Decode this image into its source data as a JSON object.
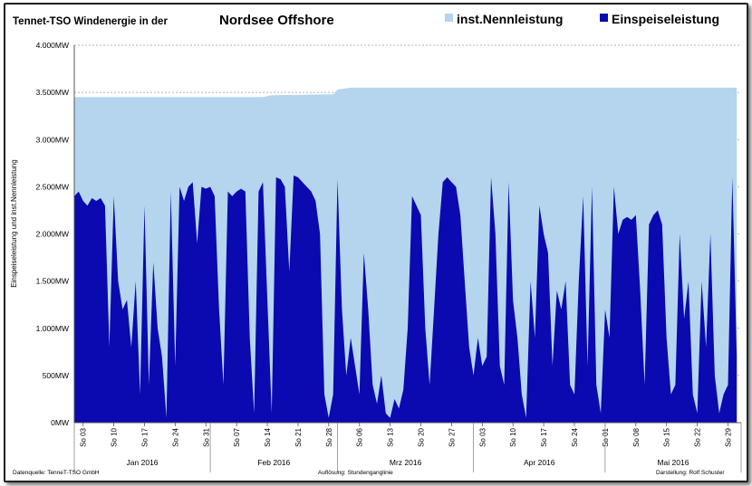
{
  "chart_data": {
    "type": "area",
    "title": {
      "prefix": "Tennet-TSO  Windenergie in der",
      "main": "Nordsee  Offshore"
    },
    "ylabel": "Einspeiseleistung und inst.Nennleistung",
    "ylim": [
      0,
      4000
    ],
    "yticks": [
      {
        "value": 0,
        "label": "0MW"
      },
      {
        "value": 500,
        "label": "500MW"
      },
      {
        "value": 1000,
        "label": "1.000MW"
      },
      {
        "value": 1500,
        "label": "1.500MW"
      },
      {
        "value": 2000,
        "label": "2.000MW"
      },
      {
        "value": 2500,
        "label": "2.500MW"
      },
      {
        "value": 3000,
        "label": "3.000MW"
      },
      {
        "value": 3500,
        "label": "3.500MW"
      },
      {
        "value": 4000,
        "label": "4.000MW"
      }
    ],
    "grid": true,
    "legend_position": "top-right",
    "xlim": [
      "2016-01-01",
      "2016-06-01"
    ],
    "xticks": [
      "So 03",
      "So 10",
      "So 17",
      "So 24",
      "So 31",
      "So 07",
      "So 14",
      "So 21",
      "So 28",
      "So 06",
      "So 13",
      "So 20",
      "So 27",
      "So 03",
      "So 10",
      "So 17",
      "So 24",
      "So 01",
      "So 08",
      "So 15",
      "So 22",
      "So 29"
    ],
    "months": [
      "Jan 2016",
      "Feb 2016",
      "Mrz 2016",
      "Apr 2016",
      "Mai 2016"
    ],
    "series": [
      {
        "name": "inst.Nennleistung",
        "color": "#b4d5ed",
        "points": [
          [
            "2016-01-01",
            3450
          ],
          [
            "2016-02-13",
            3450
          ],
          [
            "2016-02-15",
            3470
          ],
          [
            "2016-02-29",
            3480
          ],
          [
            "2016-03-01",
            3530
          ],
          [
            "2016-03-04",
            3550
          ],
          [
            "2016-05-31",
            3550
          ]
        ]
      },
      {
        "name": "Einspeiseleistung",
        "color": "#0a0ab0",
        "points": [
          [
            "2016-01-01",
            2400
          ],
          [
            "2016-01-02",
            2450
          ],
          [
            "2016-01-03",
            2350
          ],
          [
            "2016-01-04",
            2300
          ],
          [
            "2016-01-05",
            2380
          ],
          [
            "2016-01-06",
            2350
          ],
          [
            "2016-01-07",
            2380
          ],
          [
            "2016-01-08",
            2300
          ],
          [
            "2016-01-09",
            800
          ],
          [
            "2016-01-10",
            2400
          ],
          [
            "2016-01-11",
            1500
          ],
          [
            "2016-01-12",
            1200
          ],
          [
            "2016-01-13",
            1300
          ],
          [
            "2016-01-14",
            800
          ],
          [
            "2016-01-15",
            1500
          ],
          [
            "2016-01-16",
            300
          ],
          [
            "2016-01-17",
            2300
          ],
          [
            "2016-01-18",
            400
          ],
          [
            "2016-01-19",
            1700
          ],
          [
            "2016-01-20",
            1000
          ],
          [
            "2016-01-21",
            700
          ],
          [
            "2016-01-22",
            50
          ],
          [
            "2016-01-23",
            2450
          ],
          [
            "2016-01-24",
            600
          ],
          [
            "2016-01-25",
            2500
          ],
          [
            "2016-01-26",
            2350
          ],
          [
            "2016-01-27",
            2500
          ],
          [
            "2016-01-28",
            2550
          ],
          [
            "2016-01-29",
            1900
          ],
          [
            "2016-01-30",
            2500
          ],
          [
            "2016-01-31",
            2480
          ],
          [
            "2016-02-01",
            2500
          ],
          [
            "2016-02-02",
            2400
          ],
          [
            "2016-02-03",
            1200
          ],
          [
            "2016-02-04",
            400
          ],
          [
            "2016-02-05",
            2450
          ],
          [
            "2016-02-06",
            2400
          ],
          [
            "2016-02-07",
            2450
          ],
          [
            "2016-02-08",
            2480
          ],
          [
            "2016-02-09",
            2450
          ],
          [
            "2016-02-10",
            900
          ],
          [
            "2016-02-11",
            100
          ],
          [
            "2016-02-12",
            2450
          ],
          [
            "2016-02-13",
            2550
          ],
          [
            "2016-02-14",
            1300
          ],
          [
            "2016-02-15",
            100
          ],
          [
            "2016-02-16",
            2600
          ],
          [
            "2016-02-17",
            2580
          ],
          [
            "2016-02-18",
            2500
          ],
          [
            "2016-02-19",
            1600
          ],
          [
            "2016-02-20",
            2620
          ],
          [
            "2016-02-21",
            2600
          ],
          [
            "2016-02-22",
            2550
          ],
          [
            "2016-02-23",
            2500
          ],
          [
            "2016-02-24",
            2450
          ],
          [
            "2016-02-25",
            2350
          ],
          [
            "2016-02-26",
            2000
          ],
          [
            "2016-02-27",
            300
          ],
          [
            "2016-02-28",
            50
          ],
          [
            "2016-02-29",
            300
          ],
          [
            "2016-03-01",
            2580
          ],
          [
            "2016-03-02",
            1200
          ],
          [
            "2016-03-03",
            500
          ],
          [
            "2016-03-04",
            900
          ],
          [
            "2016-03-05",
            600
          ],
          [
            "2016-03-06",
            300
          ],
          [
            "2016-03-07",
            1800
          ],
          [
            "2016-03-08",
            1200
          ],
          [
            "2016-03-09",
            400
          ],
          [
            "2016-03-10",
            200
          ],
          [
            "2016-03-11",
            500
          ],
          [
            "2016-03-12",
            100
          ],
          [
            "2016-03-13",
            50
          ],
          [
            "2016-03-14",
            250
          ],
          [
            "2016-03-15",
            150
          ],
          [
            "2016-03-16",
            350
          ],
          [
            "2016-03-17",
            1000
          ],
          [
            "2016-03-18",
            2400
          ],
          [
            "2016-03-19",
            2300
          ],
          [
            "2016-03-20",
            2200
          ],
          [
            "2016-03-21",
            1000
          ],
          [
            "2016-03-22",
            400
          ],
          [
            "2016-03-23",
            1200
          ],
          [
            "2016-03-24",
            2000
          ],
          [
            "2016-03-25",
            2550
          ],
          [
            "2016-03-26",
            2600
          ],
          [
            "2016-03-27",
            2550
          ],
          [
            "2016-03-28",
            2500
          ],
          [
            "2016-03-29",
            2200
          ],
          [
            "2016-03-30",
            1500
          ],
          [
            "2016-03-31",
            800
          ],
          [
            "2016-04-01",
            500
          ],
          [
            "2016-04-02",
            900
          ],
          [
            "2016-04-03",
            600
          ],
          [
            "2016-04-04",
            700
          ],
          [
            "2016-04-05",
            2600
          ],
          [
            "2016-04-06",
            2000
          ],
          [
            "2016-04-07",
            600
          ],
          [
            "2016-04-08",
            400
          ],
          [
            "2016-04-09",
            2550
          ],
          [
            "2016-04-10",
            1300
          ],
          [
            "2016-04-11",
            900
          ],
          [
            "2016-04-12",
            300
          ],
          [
            "2016-04-13",
            50
          ],
          [
            "2016-04-14",
            1500
          ],
          [
            "2016-04-15",
            900
          ],
          [
            "2016-04-16",
            2300
          ],
          [
            "2016-04-17",
            2000
          ],
          [
            "2016-04-18",
            1800
          ],
          [
            "2016-04-19",
            600
          ],
          [
            "2016-04-20",
            1400
          ],
          [
            "2016-04-21",
            1200
          ],
          [
            "2016-04-22",
            1500
          ],
          [
            "2016-04-23",
            400
          ],
          [
            "2016-04-24",
            300
          ],
          [
            "2016-04-25",
            1500
          ],
          [
            "2016-04-26",
            2400
          ],
          [
            "2016-04-27",
            600
          ],
          [
            "2016-04-28",
            2500
          ],
          [
            "2016-04-29",
            400
          ],
          [
            "2016-04-30",
            100
          ],
          [
            "2016-05-01",
            1200
          ],
          [
            "2016-05-02",
            900
          ],
          [
            "2016-05-03",
            2500
          ],
          [
            "2016-05-04",
            2000
          ],
          [
            "2016-05-05",
            2150
          ],
          [
            "2016-05-06",
            2180
          ],
          [
            "2016-05-07",
            2150
          ],
          [
            "2016-05-08",
            2200
          ],
          [
            "2016-05-09",
            1400
          ],
          [
            "2016-05-10",
            400
          ],
          [
            "2016-05-11",
            2100
          ],
          [
            "2016-05-12",
            2200
          ],
          [
            "2016-05-13",
            2250
          ],
          [
            "2016-05-14",
            2100
          ],
          [
            "2016-05-15",
            900
          ],
          [
            "2016-05-16",
            300
          ],
          [
            "2016-05-17",
            400
          ],
          [
            "2016-05-18",
            2000
          ],
          [
            "2016-05-19",
            1100
          ],
          [
            "2016-05-20",
            1500
          ],
          [
            "2016-05-21",
            300
          ],
          [
            "2016-05-22",
            100
          ],
          [
            "2016-05-23",
            1500
          ],
          [
            "2016-05-24",
            800
          ],
          [
            "2016-05-25",
            2000
          ],
          [
            "2016-05-26",
            500
          ],
          [
            "2016-05-27",
            100
          ],
          [
            "2016-05-28",
            300
          ],
          [
            "2016-05-29",
            400
          ],
          [
            "2016-05-30",
            2600
          ],
          [
            "2016-05-31",
            700
          ]
        ]
      }
    ]
  },
  "footer": {
    "source": "Datenquelle: TenneT-TSO GmbH",
    "resolution": "Auflösung: Stundenganglinie",
    "author": "Darstellung: Rolf Schuster"
  }
}
